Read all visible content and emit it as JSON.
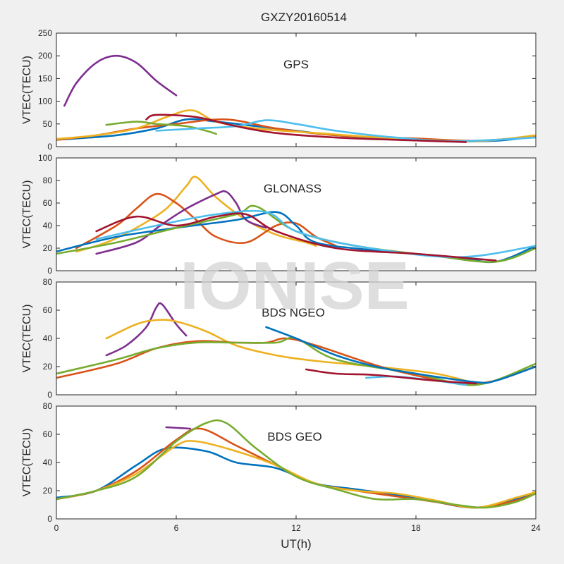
{
  "figure": {
    "title": "GXZY20160514",
    "watermark": "IONISE",
    "xlabel": "UT(h)",
    "xlim": [
      0,
      24
    ],
    "xticks": [
      0,
      6,
      12,
      18,
      24
    ],
    "xticklabels": [
      "0",
      "6",
      "12",
      "18",
      "24"
    ]
  },
  "palette": [
    "#0072BD",
    "#D95319",
    "#EDB120",
    "#7E2F8E",
    "#77AC30",
    "#4DBEEE",
    "#A2142F"
  ],
  "chart_data": [
    {
      "type": "line",
      "panel_label": "GPS",
      "ylabel": "VTEC(TECU)",
      "xlim": [
        0,
        24
      ],
      "ylim": [
        0,
        250
      ],
      "yticks": [
        0,
        50,
        100,
        150,
        200,
        250
      ],
      "grid": false,
      "series": [
        {
          "color": "#7E2F8E",
          "x": [
            0.4,
            1,
            2,
            3,
            4,
            5,
            6
          ],
          "y": [
            90,
            140,
            185,
            200,
            185,
            145,
            113
          ]
        },
        {
          "color": "#0072BD",
          "x": [
            0,
            3,
            5,
            6.5,
            8,
            10,
            12,
            14,
            17,
            20,
            22,
            24
          ],
          "y": [
            15,
            25,
            40,
            60,
            55,
            45,
            35,
            25,
            18,
            12,
            13,
            22
          ]
        },
        {
          "color": "#D95319",
          "x": [
            0,
            2,
            4,
            6,
            8.5,
            11,
            14,
            18,
            21,
            24
          ],
          "y": [
            15,
            25,
            40,
            50,
            60,
            40,
            25,
            18,
            13,
            22
          ]
        },
        {
          "color": "#EDB120",
          "x": [
            0,
            2,
            4,
            5.5,
            6.8,
            8,
            10,
            13,
            17,
            21,
            24
          ],
          "y": [
            17,
            25,
            40,
            65,
            80,
            55,
            40,
            30,
            18,
            12,
            25
          ]
        },
        {
          "color": "#77AC30",
          "x": [
            2.5,
            4,
            5,
            6.5,
            7.5,
            8
          ],
          "y": [
            48,
            55,
            50,
            45,
            35,
            28
          ]
        },
        {
          "color": "#4DBEEE",
          "x": [
            5,
            7,
            9,
            10.5,
            12,
            14,
            17,
            20,
            24
          ],
          "y": [
            35,
            40,
            45,
            58,
            50,
            35,
            20,
            12,
            20
          ]
        },
        {
          "color": "#A2142F",
          "x": [
            4.5,
            5,
            7,
            9,
            11,
            14,
            17,
            20.5
          ],
          "y": [
            60,
            70,
            65,
            45,
            30,
            20,
            15,
            10
          ]
        }
      ]
    },
    {
      "type": "line",
      "panel_label": "GLONASS",
      "ylabel": "VTEC(TECU)",
      "xlim": [
        0,
        24
      ],
      "ylim": [
        0,
        100
      ],
      "yticks": [
        0,
        20,
        40,
        60,
        80,
        100
      ],
      "grid": false,
      "series": [
        {
          "color": "#EDB120",
          "x": [
            1,
            2.5,
            4,
            5.5,
            6.5,
            7,
            8,
            9.5,
            11,
            12.5,
            13
          ],
          "y": [
            17,
            25,
            38,
            55,
            75,
            83,
            65,
            45,
            32,
            25,
            22
          ]
        },
        {
          "color": "#D95319",
          "x": [
            1,
            3,
            4,
            5,
            6,
            7,
            8,
            9.5,
            11,
            12,
            13,
            14
          ],
          "y": [
            20,
            40,
            55,
            68,
            60,
            45,
            30,
            25,
            40,
            42,
            30,
            22
          ]
        },
        {
          "color": "#7E2F8E",
          "x": [
            2,
            4,
            5.2,
            6.5,
            8,
            8.5,
            9,
            9.5,
            10.5
          ],
          "y": [
            15,
            25,
            40,
            55,
            68,
            70,
            60,
            45,
            38
          ]
        },
        {
          "color": "#0072BD",
          "x": [
            0,
            3,
            6,
            9,
            11,
            12,
            13,
            16,
            20,
            22,
            24
          ],
          "y": [
            17,
            30,
            38,
            45,
            52,
            40,
            25,
            18,
            12,
            8,
            22
          ]
        },
        {
          "color": "#77AC30",
          "x": [
            0,
            3,
            6,
            9,
            10,
            12,
            15,
            19,
            22,
            24
          ],
          "y": [
            15,
            25,
            38,
            50,
            57,
            35,
            22,
            13,
            8,
            20
          ]
        },
        {
          "color": "#4DBEEE",
          "x": [
            2,
            5,
            8,
            10.5,
            12,
            15,
            20,
            24
          ],
          "y": [
            28,
            40,
            50,
            52,
            35,
            22,
            12,
            22
          ]
        },
        {
          "color": "#A2142F",
          "x": [
            2,
            4,
            6,
            8,
            9.5,
            11,
            14,
            18,
            22
          ],
          "y": [
            35,
            48,
            40,
            48,
            50,
            35,
            20,
            15,
            9
          ]
        }
      ]
    },
    {
      "type": "line",
      "panel_label": "BDS NGEO",
      "ylabel": "VTEC(TECU)",
      "xlim": [
        0,
        24
      ],
      "ylim": [
        0,
        80
      ],
      "yticks": [
        0,
        20,
        40,
        60,
        80
      ],
      "grid": false,
      "series": [
        {
          "color": "#7E2F8E",
          "x": [
            2.5,
            3.5,
            4.5,
            5,
            5.3,
            6,
            6.5
          ],
          "y": [
            28,
            35,
            48,
            62,
            64,
            50,
            42
          ]
        },
        {
          "color": "#EDB120",
          "x": [
            2.5,
            4,
            5,
            6,
            7.5,
            9,
            11,
            13,
            16,
            19,
            21
          ],
          "y": [
            40,
            50,
            53,
            52,
            45,
            35,
            28,
            24,
            20,
            15,
            8
          ]
        },
        {
          "color": "#D95319",
          "x": [
            0,
            3,
            5,
            7,
            9,
            10.5,
            11.5,
            13,
            17,
            21,
            24
          ],
          "y": [
            12,
            22,
            33,
            38,
            37,
            37,
            40,
            35,
            17,
            8,
            20
          ]
        },
        {
          "color": "#77AC30",
          "x": [
            0,
            3,
            5,
            7,
            9,
            11,
            12,
            14,
            18,
            21,
            24
          ],
          "y": [
            15,
            25,
            33,
            37,
            37,
            37,
            40,
            25,
            15,
            7,
            22
          ]
        },
        {
          "color": "#0072BD",
          "x": [
            10.5,
            12,
            14,
            16,
            18,
            21,
            22,
            24
          ],
          "y": [
            48,
            40,
            28,
            20,
            15,
            9,
            10,
            20
          ]
        },
        {
          "color": "#4DBEEE",
          "x": [
            15.5,
            17,
            19,
            20.5
          ],
          "y": [
            12,
            13,
            10,
            7
          ]
        },
        {
          "color": "#A2142F",
          "x": [
            12.5,
            14,
            16,
            19,
            21
          ],
          "y": [
            18,
            15,
            14,
            10,
            8
          ]
        }
      ]
    },
    {
      "type": "line",
      "panel_label": "BDS GEO",
      "ylabel": "VTEC(TECU)",
      "xlim": [
        0,
        24
      ],
      "ylim": [
        0,
        80
      ],
      "yticks": [
        0,
        20,
        40,
        60,
        80
      ],
      "grid": false,
      "series": [
        {
          "color": "#0072BD",
          "x": [
            0,
            2,
            4,
            5.5,
            7.5,
            9,
            11,
            13,
            15,
            17,
            19,
            21,
            23,
            24
          ],
          "y": [
            15,
            20,
            38,
            50,
            48,
            40,
            36,
            25,
            21,
            17,
            12,
            8,
            14,
            18
          ]
        },
        {
          "color": "#D95319",
          "x": [
            0,
            2,
            4,
            6,
            7.2,
            9,
            11,
            13,
            15,
            17,
            19,
            21,
            23,
            24
          ],
          "y": [
            14,
            20,
            34,
            56,
            64,
            52,
            38,
            25,
            20,
            16,
            12,
            8,
            13,
            18
          ]
        },
        {
          "color": "#EDB120",
          "x": [
            0,
            2,
            4,
            6,
            7,
            9,
            11,
            13,
            15,
            17,
            19,
            21,
            23,
            24
          ],
          "y": [
            14,
            20,
            32,
            52,
            55,
            48,
            38,
            25,
            20,
            18,
            13,
            8,
            15,
            19
          ]
        },
        {
          "color": "#77AC30",
          "x": [
            0,
            2,
            4,
            6,
            7.5,
            8.5,
            10,
            12,
            14,
            16,
            18,
            20,
            21.5,
            23,
            24
          ],
          "y": [
            14,
            20,
            30,
            55,
            68,
            68,
            50,
            30,
            21,
            14,
            14,
            10,
            8,
            12,
            18
          ]
        },
        {
          "color": "#7E2F8E",
          "x": [
            5.5,
            6.7
          ],
          "y": [
            65,
            64
          ]
        }
      ]
    }
  ]
}
